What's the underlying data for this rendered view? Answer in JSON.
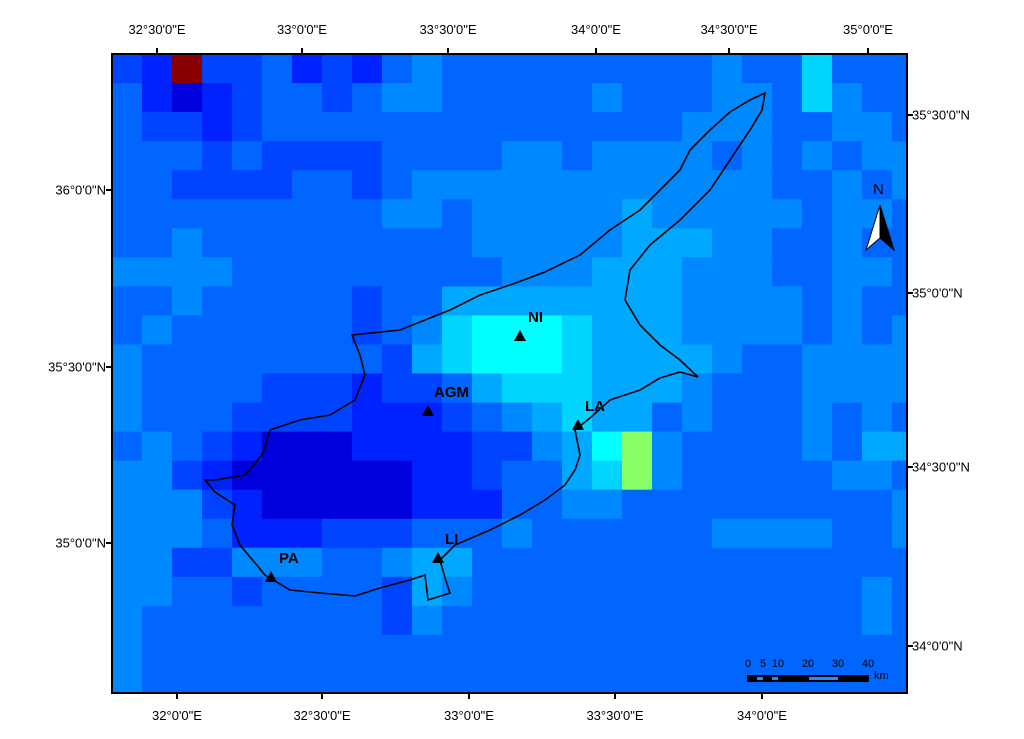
{
  "axes": {
    "top": [
      "32°30'0\"E",
      "33°0'0\"E",
      "33°30'0\"E",
      "34°0'0\"E",
      "34°30'0\"E",
      "35°0'0\"E"
    ],
    "bottom": [
      "32°0'0\"E",
      "32°30'0\"E",
      "33°0'0\"E",
      "33°30'0\"E",
      "34°0'0\"E"
    ],
    "left": [
      "36°0'0\"N",
      "35°30'0\"N",
      "35°0'0\"N"
    ],
    "right": [
      "35°30'0\"N",
      "35°0'0\"N",
      "34°30'0\"N",
      "34°0'0\"N"
    ]
  },
  "stations": [
    {
      "name": "NI"
    },
    {
      "name": "AGM"
    },
    {
      "name": "LA"
    },
    {
      "name": "LI"
    },
    {
      "name": "PA"
    }
  ],
  "north_arrow": {
    "label": "N"
  },
  "scale_bar": {
    "ticks": [
      "0",
      "5",
      "10",
      "20",
      "30",
      "40"
    ],
    "unit": "km"
  },
  "palette": [
    "#0000dd",
    "#0022ff",
    "#0044ff",
    "#0066ff",
    "#0088ff",
    "#00a8ff",
    "#00d4ff",
    "#00ffff",
    "#88ff66",
    "#880000"
  ],
  "grid": [
    "219223121343333333334336333",
    "310123323443333343334436433",
    "322123333333333333344433443",
    "333232222333344344443434344",
    "332222332344444444444433434",
    "333333333443444445444443443",
    "334333333333444445554433433",
    "444433333333344455544433443",
    "334333332335555555544443433",
    "343333332346777655544443434",
    "433333333256777655554334444",
    "433332221223566655543334444",
    "433322221112345655343334343",
    "343210001111224578433334355",
    "442100000011233568433333443",
    "444210000011133443333333334",
    "444311122233343333334444334",
    "442244433455333333333333333",
    "443323333254333333333333343",
    "433333333243333333333333343",
    "433333333333333333333333333",
    "433333333333333333333333333"
  ]
}
